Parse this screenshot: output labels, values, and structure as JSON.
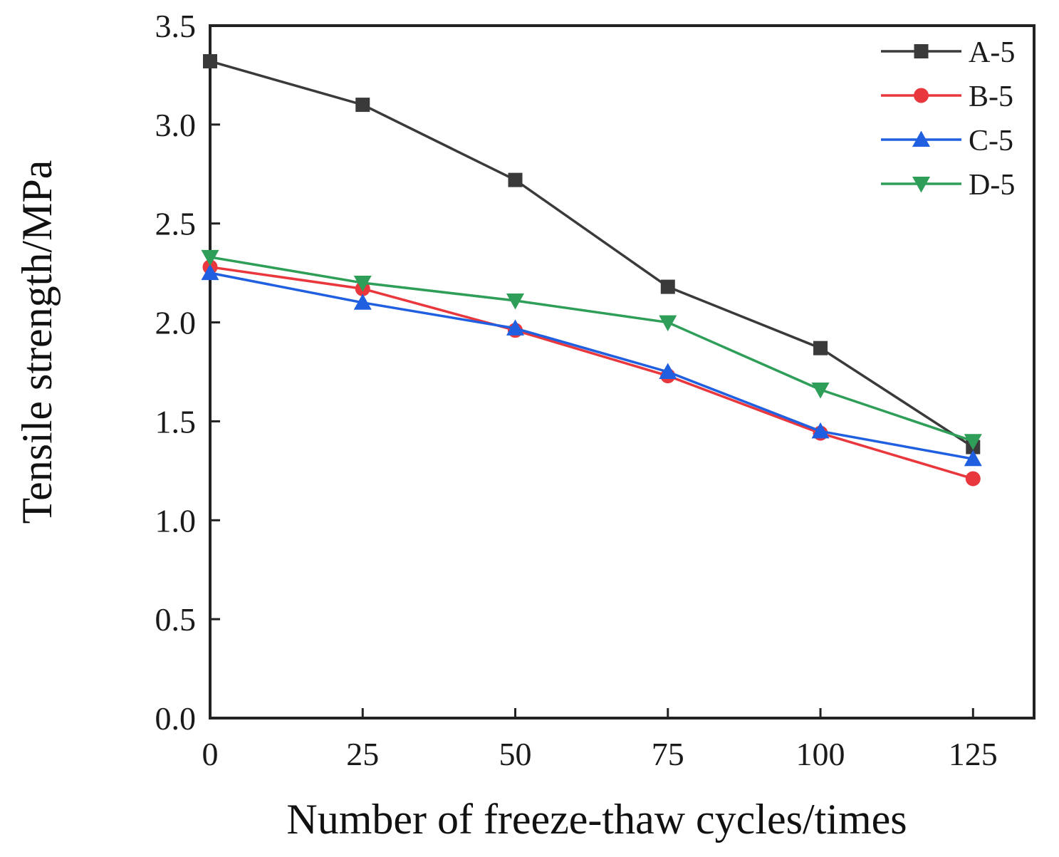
{
  "chart_data": {
    "type": "line",
    "title": "",
    "xlabel": "Number of freeze-thaw cycles/times",
    "ylabel": "Tensile strength/MPa",
    "x": [
      0,
      25,
      50,
      75,
      100,
      125
    ],
    "x_ticks": [
      "0",
      "25",
      "50",
      "75",
      "100",
      "125"
    ],
    "y_ticks": [
      "0.0",
      "0.5",
      "1.0",
      "1.5",
      "2.0",
      "2.5",
      "3.0",
      "3.5"
    ],
    "xlim": [
      0,
      135
    ],
    "ylim": [
      0,
      3.5
    ],
    "grid": false,
    "legend_position": "top-right",
    "series": [
      {
        "name": "A-5",
        "color": "#3a3a3a",
        "marker": "square",
        "values": [
          3.32,
          3.1,
          2.72,
          2.18,
          1.87,
          1.37
        ]
      },
      {
        "name": "B-5",
        "color": "#e8383d",
        "marker": "circle",
        "values": [
          2.28,
          2.17,
          1.96,
          1.73,
          1.44,
          1.21
        ]
      },
      {
        "name": "C-5",
        "color": "#1f5fe0",
        "marker": "triangle-up",
        "values": [
          2.25,
          2.1,
          1.97,
          1.75,
          1.45,
          1.31
        ]
      },
      {
        "name": "D-5",
        "color": "#2e9e58",
        "marker": "triangle-down",
        "values": [
          2.33,
          2.2,
          2.11,
          2.0,
          1.66,
          1.4
        ]
      }
    ]
  }
}
